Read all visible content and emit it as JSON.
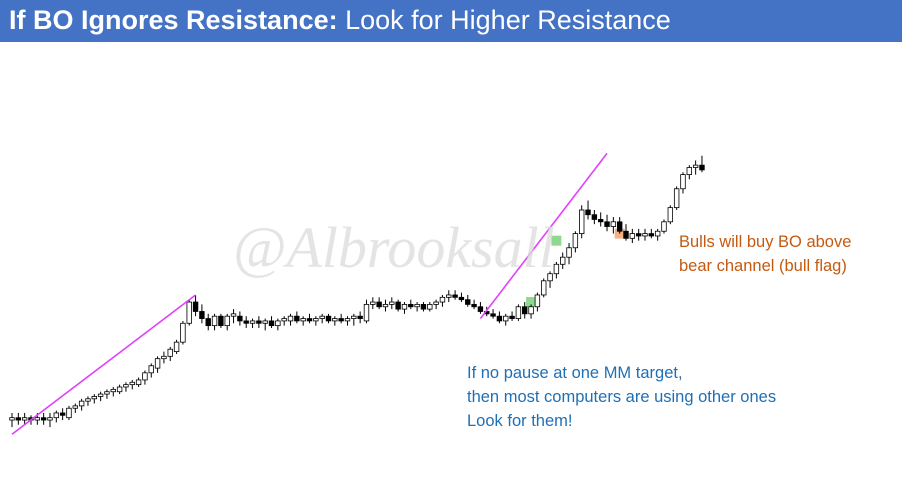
{
  "header": {
    "title_bold": "If BO Ignores Resistance:",
    "title_rest": "Look for Higher Resistance",
    "bg_color": "#4472c4"
  },
  "watermark": {
    "text": "@Albrooksall"
  },
  "annotations": {
    "bulls": {
      "lines": [
        "Bulls will buy BO above",
        "bear channel (bull flag)"
      ],
      "color": "#c55a11"
    },
    "mm": {
      "lines": [
        "If no pause at one MM target,",
        "then most computers are using other ones",
        "Look for them!"
      ],
      "color": "#1f6fb5"
    }
  },
  "chart_data": {
    "type": "candlestick",
    "axes_visible": false,
    "grid": false,
    "price_range": [
      0,
      100
    ],
    "bars": [
      {
        "o": 11,
        "h": 14,
        "l": 8,
        "c": 12
      },
      {
        "o": 12,
        "h": 14,
        "l": 9,
        "c": 11
      },
      {
        "o": 11,
        "h": 14,
        "l": 9,
        "c": 12
      },
      {
        "o": 12,
        "h": 13,
        "l": 9,
        "c": 11
      },
      {
        "o": 11,
        "h": 14,
        "l": 9,
        "c": 12
      },
      {
        "o": 12,
        "h": 14,
        "l": 9,
        "c": 11
      },
      {
        "o": 11,
        "h": 14,
        "l": 8,
        "c": 12
      },
      {
        "o": 12,
        "h": 15,
        "l": 10,
        "c": 14
      },
      {
        "o": 14,
        "h": 16,
        "l": 11,
        "c": 13
      },
      {
        "o": 12,
        "h": 17,
        "l": 11,
        "c": 16
      },
      {
        "o": 16,
        "h": 18,
        "l": 14,
        "c": 17
      },
      {
        "o": 17,
        "h": 20,
        "l": 15,
        "c": 19
      },
      {
        "o": 19,
        "h": 21,
        "l": 17,
        "c": 20
      },
      {
        "o": 20,
        "h": 22,
        "l": 18,
        "c": 21
      },
      {
        "o": 21,
        "h": 23,
        "l": 19,
        "c": 22
      },
      {
        "o": 22,
        "h": 24,
        "l": 20,
        "c": 23
      },
      {
        "o": 23,
        "h": 25,
        "l": 21,
        "c": 24
      },
      {
        "o": 23,
        "h": 26,
        "l": 22,
        "c": 25
      },
      {
        "o": 25,
        "h": 27,
        "l": 23,
        "c": 26
      },
      {
        "o": 26,
        "h": 28,
        "l": 24,
        "c": 27
      },
      {
        "o": 26,
        "h": 29,
        "l": 25,
        "c": 28
      },
      {
        "o": 28,
        "h": 32,
        "l": 26,
        "c": 31
      },
      {
        "o": 31,
        "h": 35,
        "l": 29,
        "c": 34
      },
      {
        "o": 33,
        "h": 38,
        "l": 31,
        "c": 37
      },
      {
        "o": 37,
        "h": 40,
        "l": 35,
        "c": 38
      },
      {
        "o": 38,
        "h": 42,
        "l": 36,
        "c": 41
      },
      {
        "o": 40,
        "h": 45,
        "l": 39,
        "c": 44
      },
      {
        "o": 44,
        "h": 53,
        "l": 43,
        "c": 52
      },
      {
        "o": 52,
        "h": 62,
        "l": 51,
        "c": 61
      },
      {
        "o": 61,
        "h": 64,
        "l": 55,
        "c": 57
      },
      {
        "o": 57,
        "h": 60,
        "l": 52,
        "c": 54
      },
      {
        "o": 54,
        "h": 56,
        "l": 49,
        "c": 51
      },
      {
        "o": 51,
        "h": 56,
        "l": 49,
        "c": 55
      },
      {
        "o": 55,
        "h": 56,
        "l": 50,
        "c": 51
      },
      {
        "o": 51,
        "h": 56,
        "l": 49,
        "c": 55
      },
      {
        "o": 55,
        "h": 58,
        "l": 52,
        "c": 56
      },
      {
        "o": 55,
        "h": 57,
        "l": 51,
        "c": 53
      },
      {
        "o": 53,
        "h": 55,
        "l": 50,
        "c": 52
      },
      {
        "o": 52,
        "h": 54,
        "l": 50,
        "c": 53
      },
      {
        "o": 53,
        "h": 55,
        "l": 50,
        "c": 52
      },
      {
        "o": 52,
        "h": 54,
        "l": 49,
        "c": 53
      },
      {
        "o": 53,
        "h": 55,
        "l": 50,
        "c": 51
      },
      {
        "o": 51,
        "h": 54,
        "l": 49,
        "c": 53
      },
      {
        "o": 53,
        "h": 55,
        "l": 51,
        "c": 54
      },
      {
        "o": 53,
        "h": 56,
        "l": 51,
        "c": 55
      },
      {
        "o": 55,
        "h": 57,
        "l": 52,
        "c": 53
      },
      {
        "o": 53,
        "h": 55,
        "l": 51,
        "c": 54
      },
      {
        "o": 54,
        "h": 56,
        "l": 52,
        "c": 53
      },
      {
        "o": 53,
        "h": 55,
        "l": 51,
        "c": 54
      },
      {
        "o": 54,
        "h": 56,
        "l": 52,
        "c": 55
      },
      {
        "o": 55,
        "h": 56,
        "l": 52,
        "c": 53
      },
      {
        "o": 53,
        "h": 55,
        "l": 51,
        "c": 54
      },
      {
        "o": 54,
        "h": 56,
        "l": 52,
        "c": 53
      },
      {
        "o": 53,
        "h": 55,
        "l": 51,
        "c": 54
      },
      {
        "o": 54,
        "h": 56,
        "l": 51,
        "c": 55
      },
      {
        "o": 55,
        "h": 57,
        "l": 52,
        "c": 54
      },
      {
        "o": 53,
        "h": 62,
        "l": 52,
        "c": 60
      },
      {
        "o": 60,
        "h": 63,
        "l": 58,
        "c": 61
      },
      {
        "o": 61,
        "h": 63,
        "l": 58,
        "c": 59
      },
      {
        "o": 59,
        "h": 62,
        "l": 57,
        "c": 60
      },
      {
        "o": 60,
        "h": 63,
        "l": 58,
        "c": 61
      },
      {
        "o": 61,
        "h": 62,
        "l": 57,
        "c": 58
      },
      {
        "o": 58,
        "h": 61,
        "l": 56,
        "c": 60
      },
      {
        "o": 60,
        "h": 62,
        "l": 58,
        "c": 59
      },
      {
        "o": 59,
        "h": 61,
        "l": 57,
        "c": 60
      },
      {
        "o": 60,
        "h": 61,
        "l": 57,
        "c": 58
      },
      {
        "o": 58,
        "h": 61,
        "l": 57,
        "c": 60
      },
      {
        "o": 60,
        "h": 62,
        "l": 58,
        "c": 61
      },
      {
        "o": 61,
        "h": 64,
        "l": 59,
        "c": 63
      },
      {
        "o": 63,
        "h": 66,
        "l": 61,
        "c": 64
      },
      {
        "o": 64,
        "h": 66,
        "l": 62,
        "c": 63
      },
      {
        "o": 63,
        "h": 65,
        "l": 61,
        "c": 62
      },
      {
        "o": 62,
        "h": 64,
        "l": 59,
        "c": 60
      },
      {
        "o": 60,
        "h": 62,
        "l": 58,
        "c": 59
      },
      {
        "o": 59,
        "h": 61,
        "l": 56,
        "c": 57
      },
      {
        "o": 57,
        "h": 59,
        "l": 55,
        "c": 56
      },
      {
        "o": 56,
        "h": 58,
        "l": 54,
        "c": 55
      },
      {
        "o": 55,
        "h": 57,
        "l": 52,
        "c": 53
      },
      {
        "o": 53,
        "h": 56,
        "l": 51,
        "c": 55
      },
      {
        "o": 55,
        "h": 57,
        "l": 53,
        "c": 54
      },
      {
        "o": 54,
        "h": 60,
        "l": 53,
        "c": 59
      },
      {
        "o": 59,
        "h": 61,
        "l": 54,
        "c": 56
      },
      {
        "o": 56,
        "h": 60,
        "l": 54,
        "c": 59
      },
      {
        "o": 59,
        "h": 65,
        "l": 57,
        "c": 64
      },
      {
        "o": 64,
        "h": 71,
        "l": 63,
        "c": 70
      },
      {
        "o": 70,
        "h": 74,
        "l": 67,
        "c": 73
      },
      {
        "o": 73,
        "h": 78,
        "l": 71,
        "c": 77
      },
      {
        "o": 77,
        "h": 82,
        "l": 75,
        "c": 80
      },
      {
        "o": 80,
        "h": 86,
        "l": 77,
        "c": 84
      },
      {
        "o": 84,
        "h": 91,
        "l": 82,
        "c": 90
      },
      {
        "o": 90,
        "h": 102,
        "l": 88,
        "c": 100
      },
      {
        "o": 100,
        "h": 104,
        "l": 96,
        "c": 98
      },
      {
        "o": 98,
        "h": 100,
        "l": 94,
        "c": 96
      },
      {
        "o": 96,
        "h": 99,
        "l": 93,
        "c": 95
      },
      {
        "o": 95,
        "h": 98,
        "l": 91,
        "c": 93
      },
      {
        "o": 93,
        "h": 97,
        "l": 90,
        "c": 95
      },
      {
        "o": 95,
        "h": 97,
        "l": 90,
        "c": 91
      },
      {
        "o": 91,
        "h": 94,
        "l": 87,
        "c": 88
      },
      {
        "o": 88,
        "h": 92,
        "l": 86,
        "c": 90
      },
      {
        "o": 90,
        "h": 92,
        "l": 87,
        "c": 89
      },
      {
        "o": 89,
        "h": 92,
        "l": 87,
        "c": 90
      },
      {
        "o": 90,
        "h": 92,
        "l": 88,
        "c": 89
      },
      {
        "o": 89,
        "h": 92,
        "l": 87,
        "c": 91
      },
      {
        "o": 91,
        "h": 96,
        "l": 90,
        "c": 95
      },
      {
        "o": 95,
        "h": 102,
        "l": 94,
        "c": 101
      },
      {
        "o": 101,
        "h": 110,
        "l": 100,
        "c": 109
      },
      {
        "o": 109,
        "h": 116,
        "l": 107,
        "c": 115
      },
      {
        "o": 115,
        "h": 119,
        "l": 113,
        "c": 118
      },
      {
        "o": 118,
        "h": 121,
        "l": 115,
        "c": 119
      },
      {
        "o": 119,
        "h": 123,
        "l": 116,
        "c": 117
      }
    ],
    "trendlines": [
      {
        "from": [
          0,
          5
        ],
        "to": [
          29,
          64
        ],
        "color": "#e040fb"
      },
      {
        "from": [
          74,
          54
        ],
        "to": [
          94,
          124
        ],
        "color": "#e040fb"
      }
    ],
    "highlights": [
      {
        "bar": 82,
        "level": 61,
        "color": "#90d890"
      },
      {
        "bar": 86,
        "level": 87,
        "color": "#90d890"
      },
      {
        "bar": 96,
        "level": 90,
        "color": "#f4b183"
      }
    ]
  }
}
